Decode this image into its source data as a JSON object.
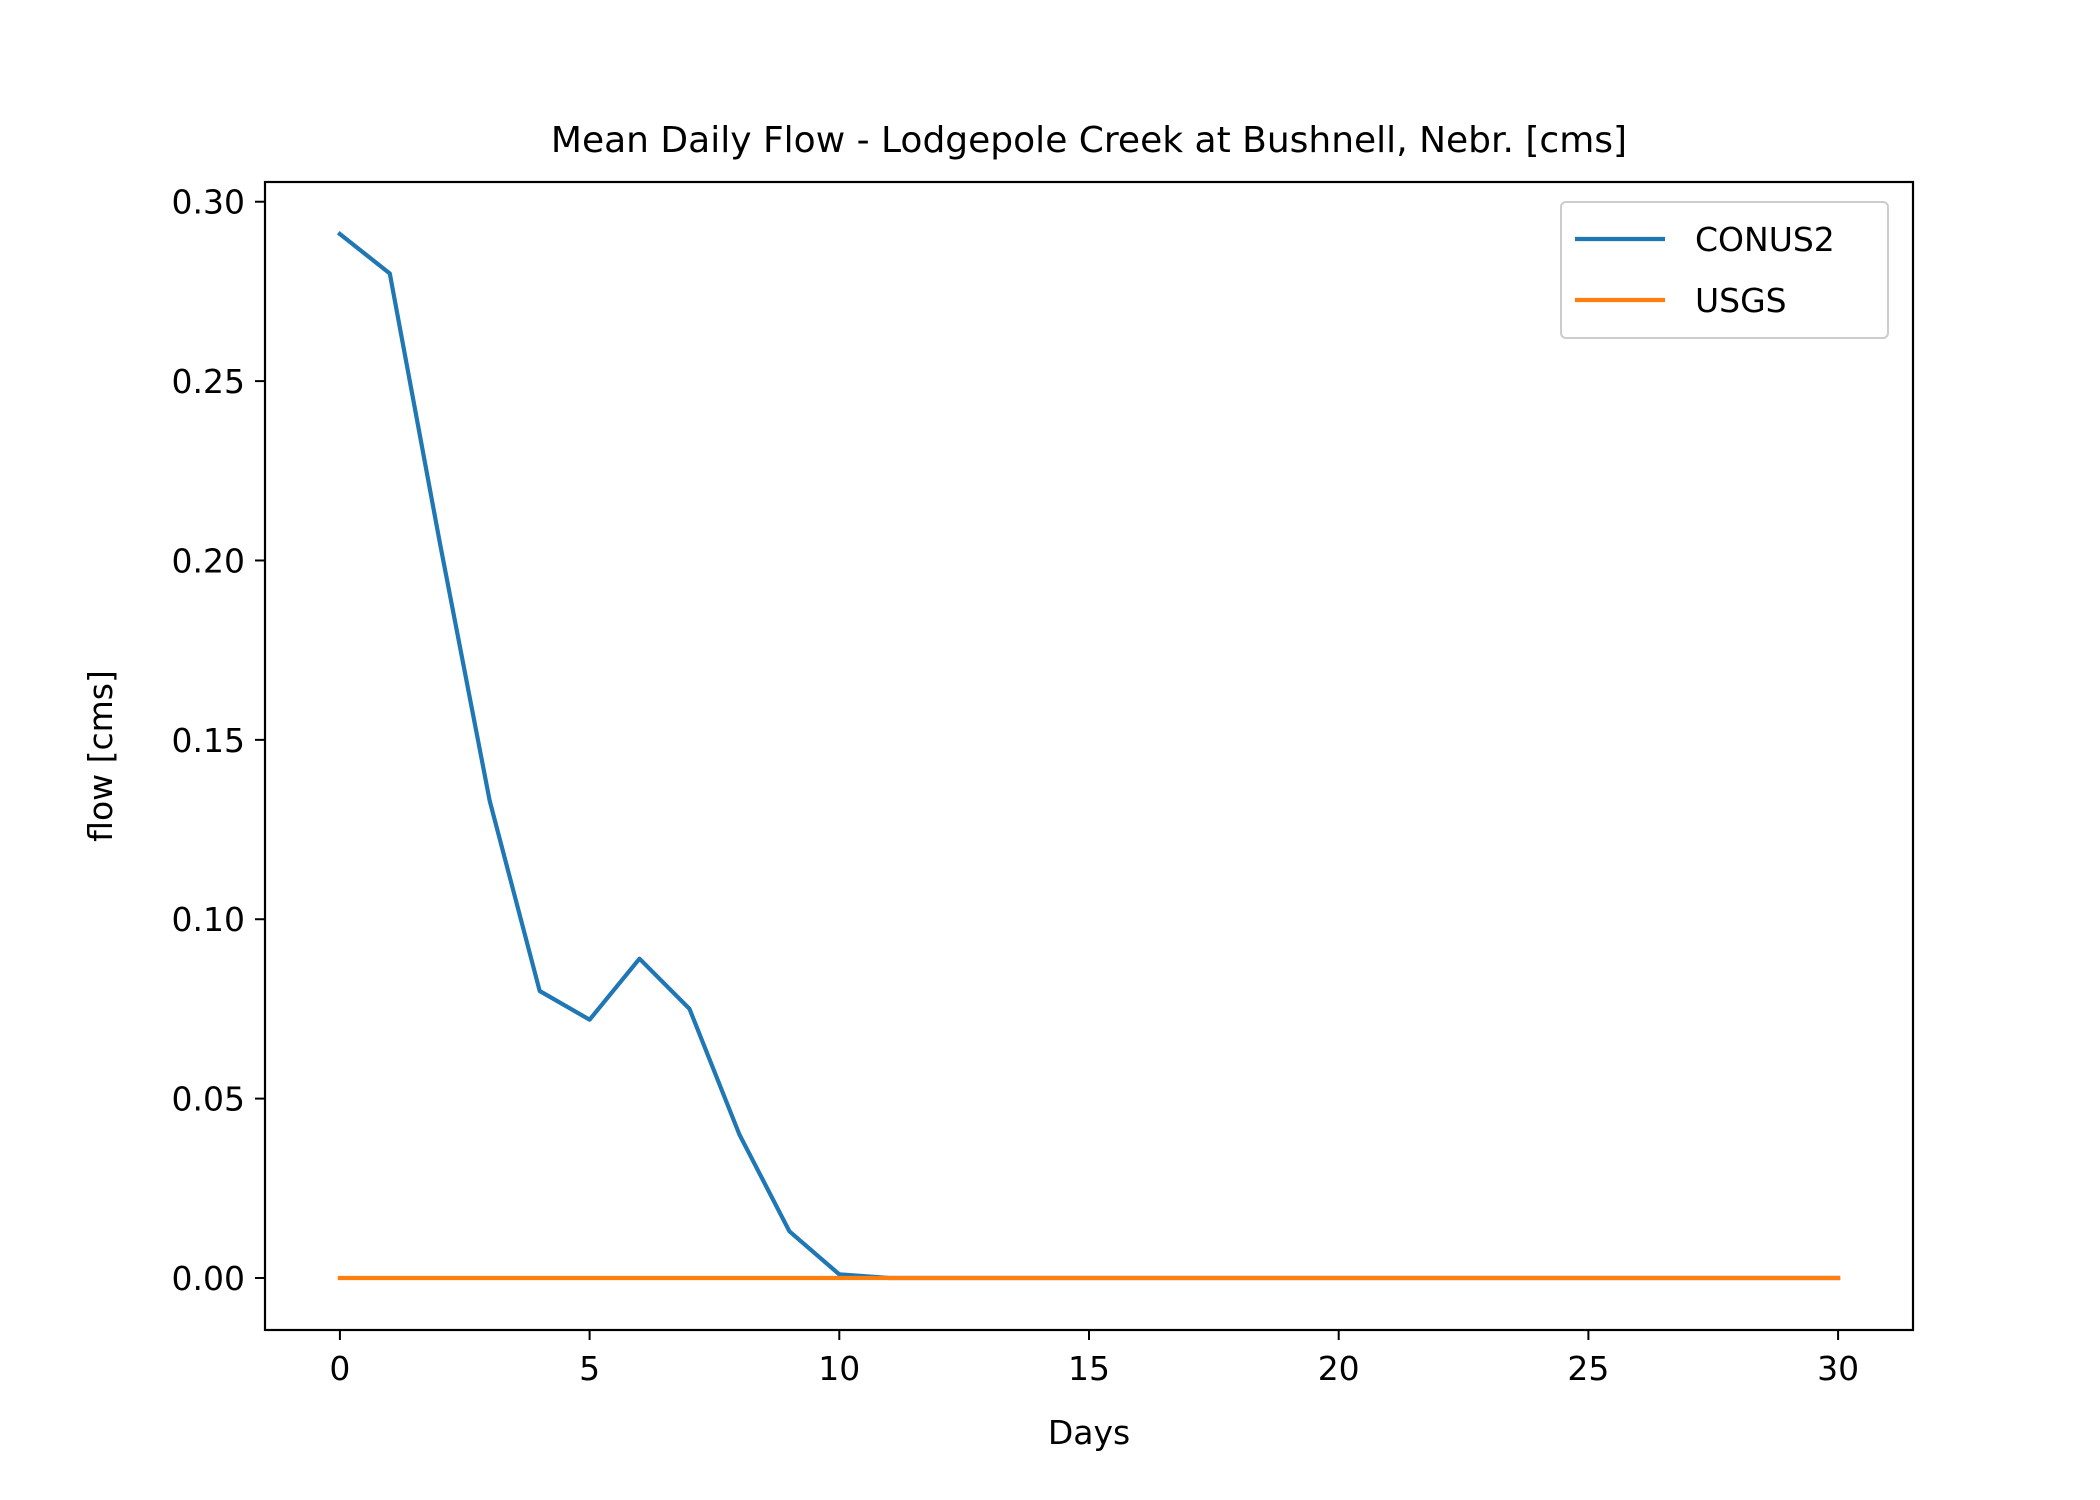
{
  "chart_data": {
    "type": "line",
    "title": "Mean Daily Flow - Lodgepole Creek at Bushnell, Nebr. [cms]",
    "xlabel": "Days",
    "ylabel": "flow [cms]",
    "xlim": [
      -1.5,
      31.5
    ],
    "ylim": [
      -0.0145,
      0.3055
    ],
    "xticks": [
      0,
      5,
      10,
      15,
      20,
      25,
      30
    ],
    "xtick_labels": [
      "0",
      "5",
      "10",
      "15",
      "20",
      "25",
      "30"
    ],
    "yticks": [
      0.0,
      0.05,
      0.1,
      0.15,
      0.2,
      0.25,
      0.3
    ],
    "ytick_labels": [
      "0.00",
      "0.05",
      "0.10",
      "0.15",
      "0.20",
      "0.25",
      "0.30"
    ],
    "grid": false,
    "legend_position": "upper right",
    "x": [
      0,
      1,
      2,
      3,
      4,
      5,
      6,
      7,
      8,
      9,
      10,
      11,
      12,
      13,
      14,
      15,
      16,
      17,
      18,
      19,
      20,
      21,
      22,
      23,
      24,
      25,
      26,
      27,
      28,
      29,
      30
    ],
    "series": [
      {
        "name": "CONUS2",
        "color": "#1f77b4",
        "values": [
          0.291,
          0.28,
          0.205,
          0.133,
          0.08,
          0.072,
          0.089,
          0.075,
          0.04,
          0.013,
          0.001,
          0.0,
          0.0,
          0.0,
          0.0,
          0.0,
          0.0,
          0.0,
          0.0,
          0.0,
          0.0,
          0.0,
          0.0,
          0.0,
          0.0,
          0.0,
          0.0,
          0.0,
          0.0,
          0.0,
          0.0
        ]
      },
      {
        "name": "USGS",
        "color": "#ff7f0e",
        "values": [
          0.0,
          0.0,
          0.0,
          0.0,
          0.0,
          0.0,
          0.0,
          0.0,
          0.0,
          0.0,
          0.0,
          0.0,
          0.0,
          0.0,
          0.0,
          0.0,
          0.0,
          0.0,
          0.0,
          0.0,
          0.0,
          0.0,
          0.0,
          0.0,
          0.0,
          0.0,
          0.0,
          0.0,
          0.0,
          0.0,
          0.0
        ]
      }
    ]
  }
}
